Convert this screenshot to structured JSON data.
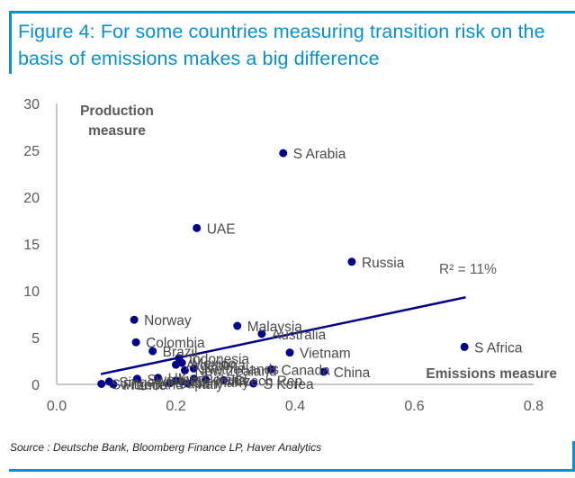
{
  "figure": {
    "title": "Figure 4: For some countries measuring transition risk on the basis of emissions makes a big difference",
    "source": "Source : Deutsche Bank, Bloomberg Finance LP, Haver Analytics",
    "accent_color": "#0a8fd1",
    "point_color": "#00008b"
  },
  "chart_data": {
    "type": "scatter",
    "title": "Figure 4: For some countries measuring transition risk on the basis of emissions makes a big difference",
    "xlabel": "Emissions measure",
    "ylabel_line1": "Production",
    "ylabel_line2": "measure",
    "xlim": [
      0.0,
      0.8
    ],
    "ylim": [
      0,
      30
    ],
    "xticks": [
      "0.0",
      "0.2",
      "0.4",
      "0.6",
      "0.8"
    ],
    "xtick_values": [
      0.0,
      0.2,
      0.4,
      0.6,
      0.8
    ],
    "yticks": [
      "0",
      "5",
      "10",
      "15",
      "20",
      "25",
      "30"
    ],
    "ytick_values": [
      0,
      5,
      10,
      15,
      20,
      25,
      30
    ],
    "grid": false,
    "legend": "none",
    "annotation": "R² = 11%",
    "trendline": {
      "x": [
        0.074,
        0.686
      ],
      "y": [
        1.1,
        9.3
      ]
    },
    "points": [
      {
        "label": "S Arabia",
        "x": 0.38,
        "y": 24.7
      },
      {
        "label": "UAE",
        "x": 0.235,
        "y": 16.7
      },
      {
        "label": "Russia",
        "x": 0.495,
        "y": 13.1
      },
      {
        "label": "S Africa",
        "x": 0.684,
        "y": 4.0
      },
      {
        "label": "Norway",
        "x": 0.13,
        "y": 6.9
      },
      {
        "label": "Colombia",
        "x": 0.133,
        "y": 4.5
      },
      {
        "label": "Malaysia",
        "x": 0.303,
        "y": 6.25
      },
      {
        "label": "Australia",
        "x": 0.344,
        "y": 5.4
      },
      {
        "label": "Vietnam",
        "x": 0.391,
        "y": 3.4
      },
      {
        "label": "Canada",
        "x": 0.36,
        "y": 1.6
      },
      {
        "label": "China",
        "x": 0.448,
        "y": 1.35
      },
      {
        "label": "Brazil",
        "x": 0.161,
        "y": 3.55
      },
      {
        "label": "Indonesia",
        "x": 0.205,
        "y": 2.8
      },
      {
        "label": "Mexico",
        "x": 0.21,
        "y": 2.3
      },
      {
        "label": "Argentina",
        "x": 0.2,
        "y": 2.1
      },
      {
        "label": "Netherlands",
        "x": 0.23,
        "y": 1.7
      },
      {
        "label": "New Zealand",
        "x": 0.215,
        "y": 1.5
      },
      {
        "label": "UK",
        "x": 0.17,
        "y": 0.7
      },
      {
        "label": "Poland",
        "x": 0.23,
        "y": 0.6
      },
      {
        "label": "India",
        "x": 0.25,
        "y": 0.5
      },
      {
        "label": "Czech Rep",
        "x": 0.28,
        "y": 0.45
      },
      {
        "label": "S Korea",
        "x": 0.33,
        "y": 0.1
      },
      {
        "label": "US",
        "x": 0.2,
        "y": 0.4
      },
      {
        "label": "Germany",
        "x": 0.21,
        "y": 0.3
      },
      {
        "label": "Japan",
        "x": 0.19,
        "y": 0.15
      },
      {
        "label": "Italy",
        "x": 0.22,
        "y": 0.1
      },
      {
        "label": "Sweden",
        "x": 0.135,
        "y": 0.6
      },
      {
        "label": "Switzerland",
        "x": 0.075,
        "y": 0.05
      },
      {
        "label": "Singapore",
        "x": 0.088,
        "y": 0.3
      },
      {
        "label": "France",
        "x": 0.095,
        "y": 0.0
      }
    ]
  }
}
